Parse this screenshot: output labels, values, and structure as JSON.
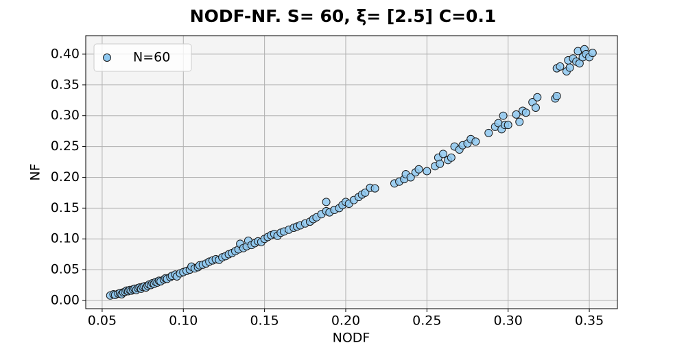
{
  "chart_data": {
    "type": "scatter",
    "title": "NODF-NF. S= 60, ξ= [2.5] C=0.1",
    "x_label": "NODF",
    "y_label": "NF",
    "xlim": [
      0.0399,
      0.3673
    ],
    "ylim": [
      -0.0134,
      0.43
    ],
    "xticks": [
      0.05,
      {
        "value": 0.1,
        "label": "0.10"
      },
      0.15,
      {
        "value": 0.2,
        "label": "0.20"
      },
      0.25,
      {
        "value": 0.3,
        "label": "0.30"
      },
      0.35
    ],
    "yticks": [
      {
        "value": 0,
        "label": "0.00"
      },
      0.05,
      {
        "value": 0.1,
        "label": "0.10"
      },
      0.15,
      {
        "value": 0.2,
        "label": "0.20"
      },
      0.25,
      {
        "value": 0.3,
        "label": "0.30"
      },
      0.35,
      {
        "value": 0.4,
        "label": "0.40"
      }
    ],
    "grid": true,
    "legend": "upper left",
    "series": [
      {
        "name": "N=60",
        "color": "#8ec8f0",
        "x": [
          0.055,
          0.057,
          0.058,
          0.06,
          0.061,
          0.062,
          0.063,
          0.064,
          0.065,
          0.066,
          0.067,
          0.068,
          0.069,
          0.07,
          0.071,
          0.072,
          0.073,
          0.074,
          0.075,
          0.076,
          0.077,
          0.078,
          0.079,
          0.08,
          0.081,
          0.082,
          0.083,
          0.084,
          0.085,
          0.086,
          0.088,
          0.089,
          0.09,
          0.092,
          0.093,
          0.095,
          0.096,
          0.098,
          0.1,
          0.102,
          0.104,
          0.105,
          0.107,
          0.109,
          0.11,
          0.112,
          0.114,
          0.116,
          0.118,
          0.12,
          0.122,
          0.124,
          0.126,
          0.128,
          0.13,
          0.132,
          0.134,
          0.135,
          0.137,
          0.139,
          0.14,
          0.142,
          0.144,
          0.146,
          0.148,
          0.15,
          0.152,
          0.154,
          0.156,
          0.158,
          0.16,
          0.162,
          0.165,
          0.168,
          0.17,
          0.172,
          0.175,
          0.178,
          0.18,
          0.182,
          0.185,
          0.188,
          0.188,
          0.19,
          0.193,
          0.196,
          0.198,
          0.2,
          0.202,
          0.205,
          0.208,
          0.21,
          0.212,
          0.215,
          0.218,
          0.23,
          0.233,
          0.236,
          0.237,
          0.24,
          0.243,
          0.245,
          0.25,
          0.255,
          0.257,
          0.258,
          0.26,
          0.263,
          0.265,
          0.267,
          0.27,
          0.272,
          0.275,
          0.277,
          0.28,
          0.288,
          0.292,
          0.294,
          0.296,
          0.297,
          0.298,
          0.3,
          0.305,
          0.307,
          0.309,
          0.311,
          0.315,
          0.317,
          0.318,
          0.329,
          0.33,
          0.33,
          0.332,
          0.336,
          0.337,
          0.338,
          0.34,
          0.342,
          0.343,
          0.344,
          0.346,
          0.347,
          0.348,
          0.35,
          0.352
        ],
        "values": [
          0.008,
          0.01,
          0.009,
          0.011,
          0.012,
          0.01,
          0.013,
          0.014,
          0.016,
          0.015,
          0.017,
          0.016,
          0.018,
          0.019,
          0.017,
          0.02,
          0.021,
          0.019,
          0.022,
          0.023,
          0.021,
          0.024,
          0.026,
          0.025,
          0.028,
          0.027,
          0.03,
          0.029,
          0.032,
          0.031,
          0.034,
          0.036,
          0.035,
          0.038,
          0.04,
          0.042,
          0.039,
          0.044,
          0.046,
          0.048,
          0.05,
          0.055,
          0.052,
          0.054,
          0.057,
          0.058,
          0.06,
          0.063,
          0.065,
          0.067,
          0.066,
          0.07,
          0.072,
          0.075,
          0.077,
          0.08,
          0.083,
          0.092,
          0.085,
          0.088,
          0.097,
          0.09,
          0.093,
          0.096,
          0.095,
          0.1,
          0.103,
          0.106,
          0.108,
          0.105,
          0.11,
          0.112,
          0.115,
          0.118,
          0.12,
          0.122,
          0.125,
          0.128,
          0.132,
          0.135,
          0.14,
          0.16,
          0.145,
          0.143,
          0.147,
          0.15,
          0.155,
          0.16,
          0.157,
          0.163,
          0.168,
          0.172,
          0.175,
          0.183,
          0.182,
          0.19,
          0.193,
          0.197,
          0.205,
          0.2,
          0.208,
          0.213,
          0.21,
          0.218,
          0.232,
          0.222,
          0.238,
          0.228,
          0.232,
          0.25,
          0.245,
          0.252,
          0.255,
          0.262,
          0.258,
          0.272,
          0.282,
          0.288,
          0.278,
          0.3,
          0.285,
          0.285,
          0.302,
          0.29,
          0.308,
          0.305,
          0.322,
          0.313,
          0.33,
          0.328,
          0.332,
          0.377,
          0.38,
          0.372,
          0.39,
          0.378,
          0.393,
          0.388,
          0.405,
          0.385,
          0.395,
          0.408,
          0.4,
          0.395,
          0.402
        ]
      }
    ]
  }
}
